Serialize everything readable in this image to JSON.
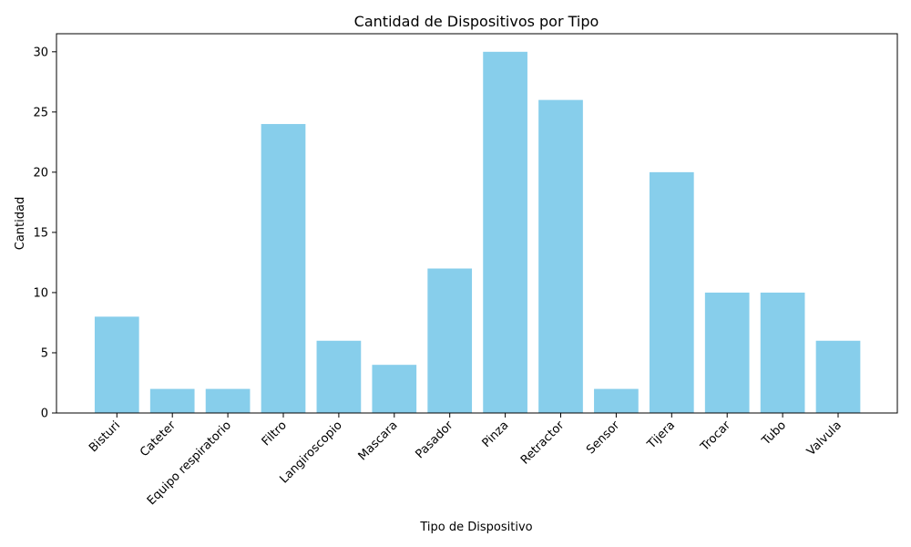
{
  "chart_data": {
    "type": "bar",
    "title": "Cantidad de Dispositivos por Tipo",
    "xlabel": "Tipo de Dispositivo",
    "ylabel": "Cantidad",
    "categories": [
      "Bisturi",
      "Cateter",
      "Equipo respiratorio",
      "Filtro",
      "Langiroscopio",
      "Mascara",
      "Pasador",
      "Pinza",
      "Retractor",
      "Sensor",
      "Tijera",
      "Trocar",
      "Tubo",
      "Valvula"
    ],
    "values": [
      8,
      2,
      2,
      24,
      6,
      4,
      12,
      30,
      26,
      2,
      20,
      10,
      10,
      6
    ],
    "ylim": [
      0,
      31.5
    ],
    "yticks": [
      0,
      5,
      10,
      15,
      20,
      25,
      30
    ],
    "bar_color": "#87ceeb",
    "grid": false,
    "legend": "none"
  }
}
